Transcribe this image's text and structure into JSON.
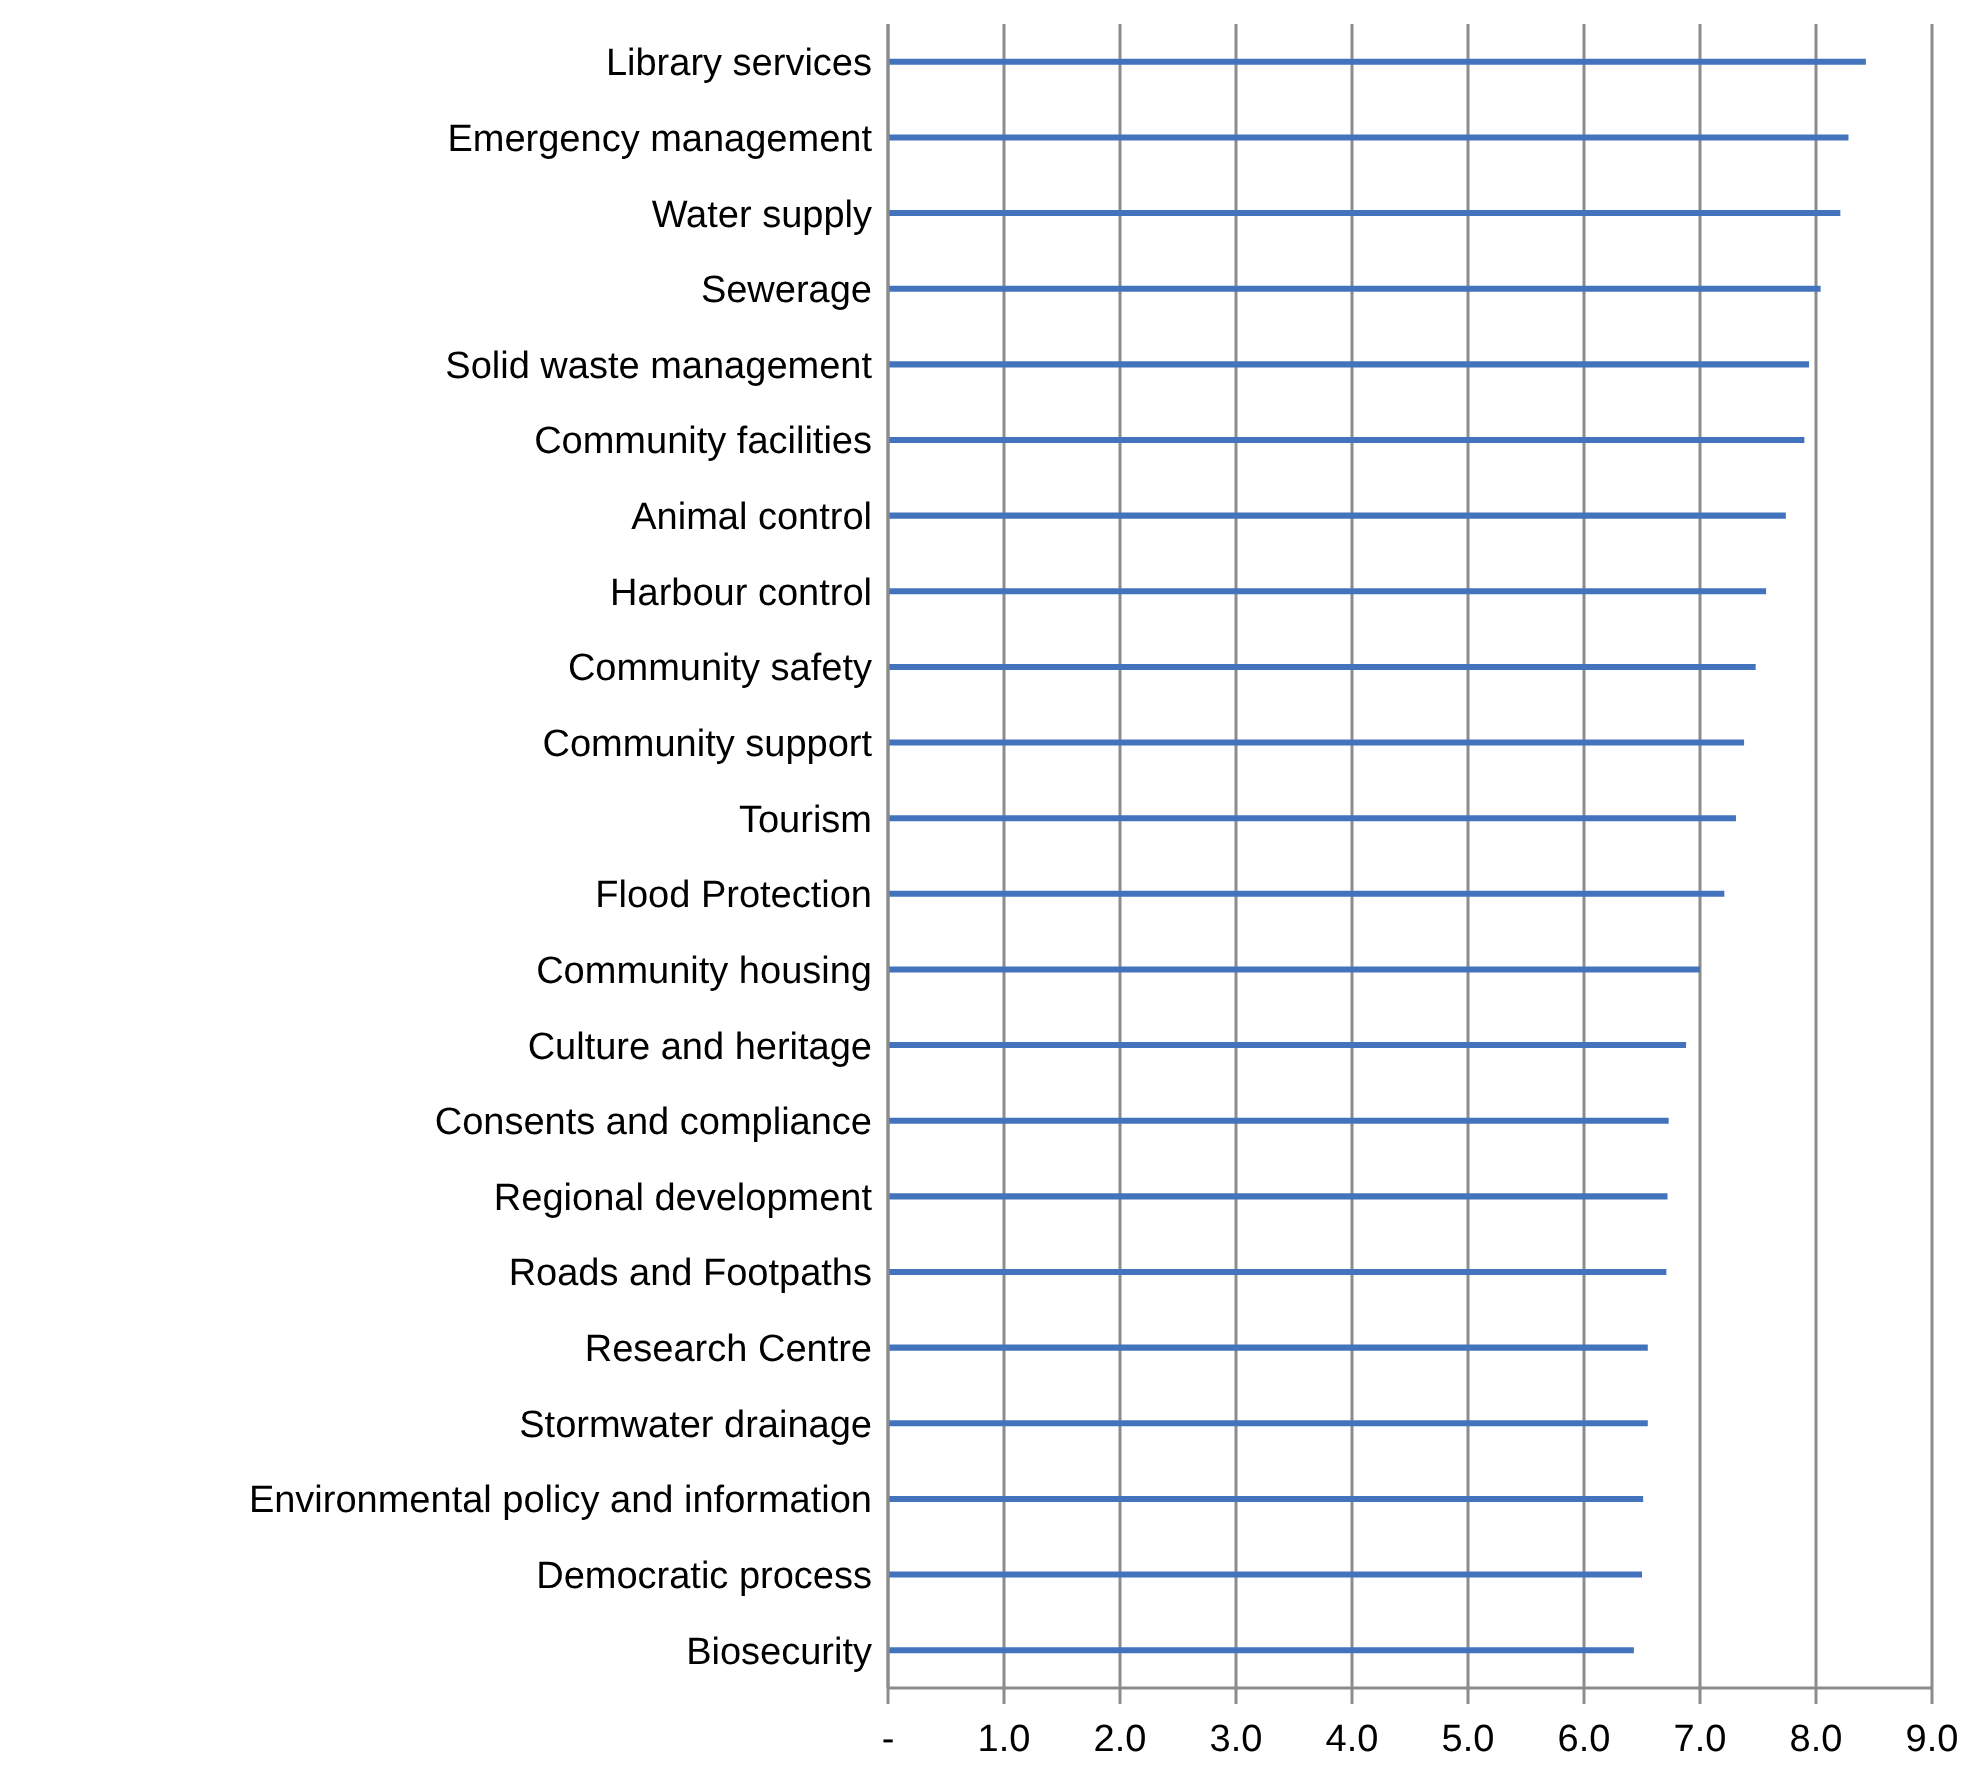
{
  "chart_data": {
    "type": "bar",
    "orientation": "horizontal",
    "categories": [
      "Library services",
      "Emergency management",
      "Water supply",
      "Sewerage",
      "Solid waste management",
      "Community facilities",
      "Animal control",
      "Harbour control",
      "Community safety",
      "Community support",
      "Tourism",
      "Flood Protection",
      "Community housing",
      "Culture and heritage",
      "Consents and compliance",
      "Regional development",
      "Roads and Footpaths",
      "Research Centre",
      "Stormwater drainage",
      "Environmental policy and information",
      "Democratic process",
      "Biosecurity"
    ],
    "values": [
      8.43,
      8.28,
      8.21,
      8.04,
      7.94,
      7.9,
      7.74,
      7.57,
      7.48,
      7.38,
      7.31,
      7.21,
      7.0,
      6.88,
      6.73,
      6.72,
      6.71,
      6.55,
      6.55,
      6.51,
      6.5,
      6.43
    ],
    "color": "#4473be",
    "xlim": [
      0,
      9
    ],
    "xticks": [
      {
        "value": 0,
        "label": "-"
      },
      {
        "value": 1,
        "label": "1.0"
      },
      {
        "value": 2,
        "label": "2.0"
      },
      {
        "value": 3,
        "label": "3.0"
      },
      {
        "value": 4,
        "label": "4.0"
      },
      {
        "value": 5,
        "label": "5.0"
      },
      {
        "value": 6,
        "label": "6.0"
      },
      {
        "value": 7,
        "label": "7.0"
      },
      {
        "value": 8,
        "label": "8.0"
      },
      {
        "value": 9,
        "label": "9.0"
      }
    ],
    "grid": "x"
  }
}
